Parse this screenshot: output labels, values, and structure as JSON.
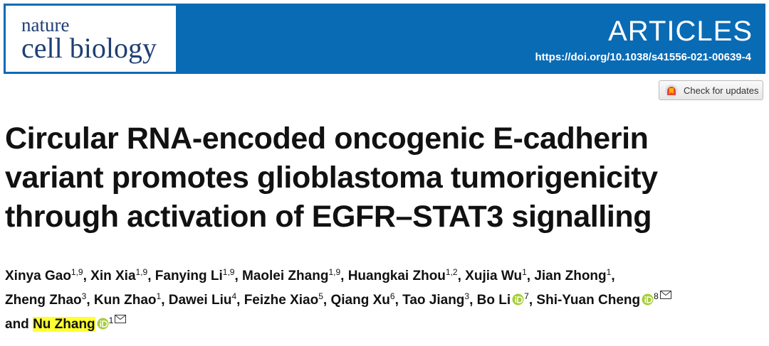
{
  "header": {
    "journal_line1": "nature",
    "journal_line2": "cell biology",
    "section": "ARTICLES",
    "doi": "https://doi.org/10.1038/s41556-021-00639-4"
  },
  "check_updates": "Check for updates",
  "title_lines": [
    "Circular RNA-encoded oncogenic E-cadherin",
    "variant promotes glioblastoma tumorigenicity",
    "through activation of EGFR–STAT3 signalling"
  ],
  "author_lines": [
    [
      {
        "name": "Xinya Gao",
        "affiliations": "1,9",
        "punct": ","
      },
      {
        "name": "Xin Xia",
        "affiliations": "1,9",
        "punct": ","
      },
      {
        "name": "Fanying Li",
        "affiliations": "1,9",
        "punct": ","
      },
      {
        "name": "Maolei Zhang",
        "affiliations": "1,9",
        "punct": ","
      },
      {
        "name": "Huangkai Zhou",
        "affiliations": "1,2",
        "punct": ","
      },
      {
        "name": "Xujia Wu",
        "affiliations": "1",
        "punct": ","
      },
      {
        "name": "Jian Zhong",
        "affiliations": "1",
        "punct": ","
      }
    ],
    [
      {
        "name": "Zheng Zhao",
        "affiliations": "3",
        "punct": ","
      },
      {
        "name": "Kun Zhao",
        "affiliations": "1",
        "punct": ","
      },
      {
        "name": "Dawei Liu",
        "affiliations": "4",
        "punct": ","
      },
      {
        "name": "Feizhe Xiao",
        "affiliations": "5",
        "punct": ","
      },
      {
        "name": "Qiang Xu",
        "affiliations": "6",
        "punct": ","
      },
      {
        "name": "Tao Jiang",
        "affiliations": "3",
        "punct": ","
      },
      {
        "name": "Bo Li",
        "affiliations": "7",
        "orcid": true,
        "punct": ","
      },
      {
        "name": "Shi-Yuan Cheng",
        "affiliations": "8",
        "orcid": true,
        "email": true
      }
    ],
    [
      {
        "text": "and"
      },
      {
        "name": "Nu Zhang",
        "affiliations": "1",
        "orcid": true,
        "email": true,
        "highlight": true
      }
    ]
  ]
}
